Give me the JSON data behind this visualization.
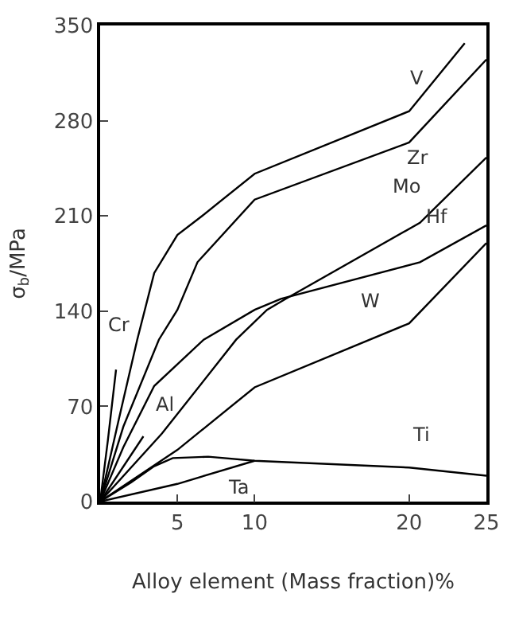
{
  "chart_data": {
    "type": "line",
    "xlabel": "Alloy element (Mass fraction)%",
    "ylabel": "σ$_{b}$/MPa",
    "xlim": [
      0,
      25
    ],
    "xticks": [
      5,
      10,
      20,
      25
    ],
    "ylim": [
      0,
      350
    ],
    "yticks": [
      0,
      70,
      140,
      210,
      280,
      350
    ],
    "marker": "none",
    "line_style": "solid",
    "series": [
      {
        "color": "#000000",
        "x": [
          0,
          1.2,
          2.4,
          3.5,
          5,
          6.6,
          10,
          20,
          23.6
        ],
        "values": [
          0,
          60,
          119,
          168,
          196,
          210,
          241,
          287,
          337
        ]
      },
      {
        "color": "#000000",
        "x": [
          0,
          1.5,
          3.8,
          5,
          6.3,
          10,
          20,
          25
        ],
        "values": [
          0,
          55,
          119,
          141,
          176,
          222,
          264,
          325
        ]
      },
      {
        "color": "#000000",
        "x": [
          0,
          4,
          8.8,
          10.8,
          12,
          20.7,
          25
        ],
        "values": [
          0,
          50,
          119,
          141,
          149,
          205,
          253
        ]
      },
      {
        "color": "#000000",
        "x": [
          0,
          1.5,
          3.5,
          6.7,
          10,
          11.7,
          20.7,
          25
        ],
        "values": [
          0,
          40,
          85,
          119,
          141,
          149,
          176,
          203
        ]
      },
      {
        "color": "#000000",
        "x": [
          0,
          5,
          10,
          20,
          25
        ],
        "values": [
          0,
          38,
          84,
          131,
          190
        ]
      },
      {
        "color": "#000000",
        "x": [
          0,
          0.5,
          1.03
        ],
        "values": [
          0,
          45,
          97
        ]
      },
      {
        "color": "#000000",
        "x": [
          0,
          2.8
        ],
        "values": [
          0,
          48
        ]
      },
      {
        "color": "#000000",
        "x": [
          0,
          2,
          3.5,
          4.7,
          7,
          10,
          20,
          25
        ],
        "values": [
          0,
          14,
          26,
          32,
          33,
          30,
          25,
          19
        ]
      },
      {
        "color": "#000000",
        "x": [
          0,
          5,
          10
        ],
        "values": [
          0,
          13,
          30
        ]
      }
    ],
    "annotations": [
      "V",
      "Zr",
      "Mo",
      "Hf",
      "W",
      "Cr",
      "Al",
      "Ti",
      "Ta"
    ]
  }
}
